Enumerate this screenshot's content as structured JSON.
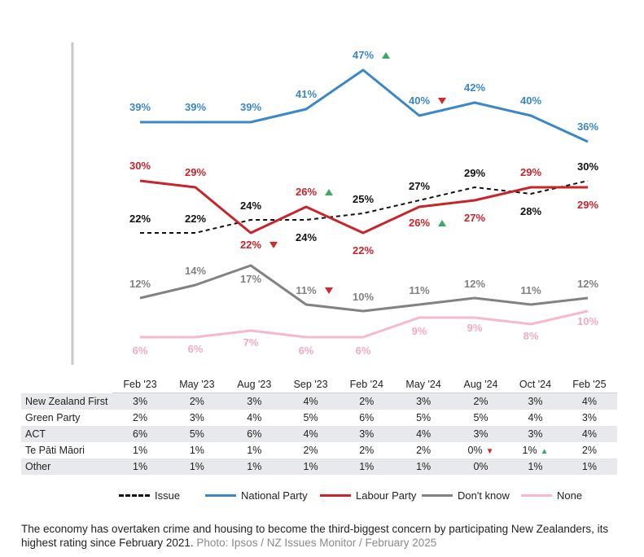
{
  "chart_data": {
    "type": "line",
    "title": "",
    "xlabel": "",
    "ylabel": "",
    "ylim": [
      0,
      50
    ],
    "grid": false,
    "categories": [
      "Feb '23",
      "May '23",
      "Aug '23",
      "Sep '23",
      "Feb '24",
      "May '24",
      "Aug '24",
      "Oct '24",
      "Feb '25"
    ],
    "series": [
      {
        "name": "National Party",
        "color": "#3b87c7",
        "dash": "solid",
        "values": [
          39,
          39,
          39,
          41,
          47,
          40,
          42,
          40,
          36
        ],
        "labels": [
          "39%",
          "39%",
          "39%",
          "41%",
          "47%",
          "40%",
          "42%",
          "40%",
          "36%"
        ],
        "markers": [
          null,
          null,
          null,
          null,
          "up",
          "down",
          null,
          null,
          null
        ]
      },
      {
        "name": "Labour Party",
        "color": "#c8242b",
        "dash": "solid",
        "values": [
          30,
          29,
          22,
          26,
          22,
          26,
          27,
          29,
          29
        ],
        "labels": [
          "30%",
          "29%",
          "22%",
          "26%",
          "22%",
          "26%",
          "27%",
          "29%",
          "29%"
        ],
        "markers": [
          null,
          null,
          "down",
          "up",
          null,
          "up",
          null,
          null,
          null
        ]
      },
      {
        "name": "Issue",
        "color": "#111111",
        "dash": "dashed",
        "values": [
          22,
          22,
          24,
          24,
          25,
          27,
          29,
          28,
          30
        ],
        "labels": [
          "22%",
          "22%",
          "24%",
          "24%",
          "25%",
          "27%",
          "29%",
          "28%",
          "30%"
        ],
        "markers": [
          null,
          null,
          null,
          null,
          null,
          null,
          null,
          null,
          null
        ]
      },
      {
        "name": "Don't know",
        "color": "#828282",
        "dash": "solid",
        "values": [
          12,
          14,
          17,
          11,
          10,
          11,
          12,
          11,
          12
        ],
        "labels": [
          "12%",
          "14%",
          "17%",
          "11%",
          "10%",
          "11%",
          "12%",
          "11%",
          "12%"
        ],
        "markers": [
          null,
          null,
          null,
          "down",
          null,
          null,
          null,
          null,
          null
        ]
      },
      {
        "name": "None",
        "color": "#f6b8cf",
        "dash": "solid",
        "values": [
          6,
          6,
          7,
          6,
          6,
          9,
          9,
          8,
          10
        ],
        "labels": [
          "6%",
          "6%",
          "7%",
          "6%",
          "6%",
          "9%",
          "9%",
          "8%",
          "10%"
        ],
        "markers": [
          null,
          null,
          null,
          null,
          null,
          null,
          null,
          null,
          null
        ]
      }
    ],
    "legend": [
      "Issue",
      "National Party",
      "Labour Party",
      "Don't know",
      "None"
    ],
    "legend_position": "bottom"
  },
  "colors": {
    "marker_up": "#3ea867",
    "marker_down": "#d62828"
  },
  "table": {
    "headers": [
      "Feb '23",
      "May '23",
      "Aug '23",
      "Sep '23",
      "Feb '24",
      "May '24",
      "Aug '24",
      "Oct '24",
      "Feb '25"
    ],
    "rows": [
      {
        "name": "New Zealand First",
        "cells": [
          "3%",
          "2%",
          "3%",
          "4%",
          "2%",
          "3%",
          "2%",
          "3%",
          "4%"
        ],
        "markers": [
          null,
          null,
          null,
          null,
          null,
          null,
          null,
          null,
          null
        ]
      },
      {
        "name": "Green Party",
        "cells": [
          "2%",
          "3%",
          "4%",
          "5%",
          "6%",
          "5%",
          "5%",
          "4%",
          "3%"
        ],
        "markers": [
          null,
          null,
          null,
          null,
          null,
          null,
          null,
          null,
          null
        ]
      },
      {
        "name": "ACT",
        "cells": [
          "6%",
          "5%",
          "6%",
          "4%",
          "3%",
          "4%",
          "3%",
          "3%",
          "4%"
        ],
        "markers": [
          null,
          null,
          null,
          null,
          null,
          null,
          null,
          null,
          null
        ]
      },
      {
        "name": "Te Pāti Māori",
        "cells": [
          "1%",
          "1%",
          "1%",
          "2%",
          "2%",
          "2%",
          "0%",
          "1%",
          "2%"
        ],
        "markers": [
          null,
          null,
          null,
          null,
          null,
          null,
          "down",
          "up",
          null
        ]
      },
      {
        "name": "Other",
        "cells": [
          "1%",
          "1%",
          "1%",
          "1%",
          "1%",
          "1%",
          "0%",
          "1%",
          "1%"
        ],
        "markers": [
          null,
          null,
          null,
          null,
          null,
          null,
          null,
          null,
          null
        ]
      }
    ]
  },
  "caption": {
    "text": "The economy has overtaken crime and housing to become the third-biggest concern by participating New Zealanders, its highest rating since February 2021.",
    "credit": "Photo: Ipsos / NZ Issues Monitor / February 2025"
  }
}
